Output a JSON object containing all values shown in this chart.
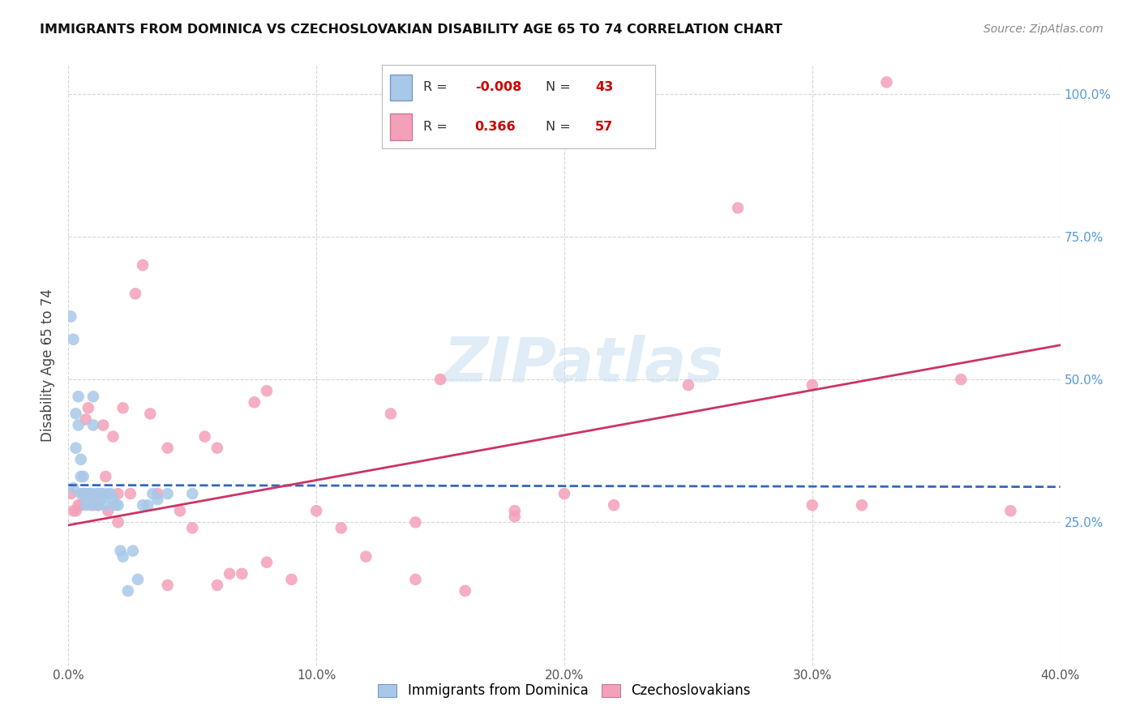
{
  "title": "IMMIGRANTS FROM DOMINICA VS CZECHOSLOVAKIAN DISABILITY AGE 65 TO 74 CORRELATION CHART",
  "source": "Source: ZipAtlas.com",
  "ylabel": "Disability Age 65 to 74",
  "xlim": [
    0.0,
    0.4
  ],
  "ylim": [
    0.0,
    1.05
  ],
  "xlabel_vals": [
    0.0,
    0.1,
    0.2,
    0.3,
    0.4
  ],
  "ylabel_vals": [
    0.25,
    0.5,
    0.75,
    1.0
  ],
  "blue_color": "#a8c8e8",
  "pink_color": "#f4a0b8",
  "blue_line_color": "#3366bb",
  "pink_line_color": "#cc3366",
  "blue_scatter_x": [
    0.001,
    0.002,
    0.002,
    0.003,
    0.003,
    0.004,
    0.004,
    0.005,
    0.005,
    0.005,
    0.006,
    0.006,
    0.007,
    0.007,
    0.008,
    0.008,
    0.009,
    0.009,
    0.01,
    0.01,
    0.011,
    0.012,
    0.012,
    0.013,
    0.013,
    0.014,
    0.015,
    0.016,
    0.017,
    0.018,
    0.019,
    0.02,
    0.021,
    0.022,
    0.024,
    0.026,
    0.028,
    0.03,
    0.032,
    0.034,
    0.036,
    0.04,
    0.05
  ],
  "blue_scatter_y": [
    0.61,
    0.57,
    0.31,
    0.44,
    0.38,
    0.47,
    0.42,
    0.36,
    0.33,
    0.3,
    0.33,
    0.3,
    0.3,
    0.28,
    0.3,
    0.29,
    0.3,
    0.28,
    0.47,
    0.42,
    0.3,
    0.3,
    0.28,
    0.3,
    0.29,
    0.3,
    0.28,
    0.3,
    0.3,
    0.29,
    0.28,
    0.28,
    0.2,
    0.19,
    0.13,
    0.2,
    0.15,
    0.28,
    0.28,
    0.3,
    0.29,
    0.3,
    0.3
  ],
  "pink_scatter_x": [
    0.001,
    0.002,
    0.003,
    0.004,
    0.005,
    0.006,
    0.007,
    0.008,
    0.009,
    0.01,
    0.012,
    0.013,
    0.014,
    0.015,
    0.016,
    0.018,
    0.02,
    0.022,
    0.025,
    0.027,
    0.03,
    0.033,
    0.036,
    0.04,
    0.045,
    0.05,
    0.055,
    0.06,
    0.065,
    0.07,
    0.075,
    0.08,
    0.09,
    0.1,
    0.11,
    0.12,
    0.13,
    0.14,
    0.15,
    0.18,
    0.2,
    0.22,
    0.25,
    0.27,
    0.3,
    0.33,
    0.36,
    0.38,
    0.3,
    0.32,
    0.18,
    0.16,
    0.14,
    0.08,
    0.06,
    0.04,
    0.02
  ],
  "pink_scatter_y": [
    0.3,
    0.27,
    0.27,
    0.28,
    0.28,
    0.3,
    0.43,
    0.45,
    0.3,
    0.28,
    0.28,
    0.3,
    0.42,
    0.33,
    0.27,
    0.4,
    0.25,
    0.45,
    0.3,
    0.65,
    0.7,
    0.44,
    0.3,
    0.38,
    0.27,
    0.24,
    0.4,
    0.38,
    0.16,
    0.16,
    0.46,
    0.48,
    0.15,
    0.27,
    0.24,
    0.19,
    0.44,
    0.25,
    0.5,
    0.26,
    0.3,
    0.28,
    0.49,
    0.8,
    0.28,
    1.02,
    0.5,
    0.27,
    0.49,
    0.28,
    0.27,
    0.13,
    0.15,
    0.18,
    0.14,
    0.14,
    0.3
  ],
  "blue_line_x": [
    0.0,
    0.4
  ],
  "blue_line_y": [
    0.315,
    0.312
  ],
  "pink_line_x": [
    0.0,
    0.4
  ],
  "pink_line_y": [
    0.245,
    0.56
  ],
  "legend_blue_r": "-0.008",
  "legend_blue_n": "43",
  "legend_pink_r": "0.366",
  "legend_pink_n": "57"
}
